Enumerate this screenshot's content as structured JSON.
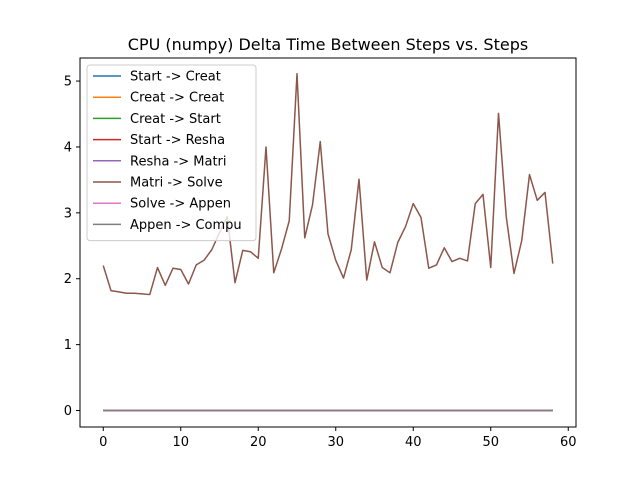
{
  "chart_data": {
    "type": "line",
    "title": "CPU (numpy) Delta Time Between Steps vs. Steps",
    "xlabel": "",
    "ylabel": "",
    "xlim": [
      -3,
      61
    ],
    "ylim": [
      -0.25,
      5.35
    ],
    "xticks": [
      0,
      10,
      20,
      30,
      40,
      50,
      60
    ],
    "yticks": [
      0,
      1,
      2,
      3,
      4,
      5
    ],
    "grid": false,
    "legend_position": "top-left",
    "series": [
      {
        "name": "Start -> Creat",
        "color": "#1f77b4",
        "values": [
          0,
          0,
          0,
          0,
          0,
          0,
          0,
          0,
          0,
          0,
          0,
          0,
          0,
          0,
          0,
          0,
          0,
          0,
          0,
          0,
          0,
          0,
          0,
          0,
          0,
          0,
          0,
          0,
          0,
          0,
          0,
          0,
          0,
          0,
          0,
          0,
          0,
          0,
          0,
          0,
          0,
          0,
          0,
          0,
          0,
          0,
          0,
          0,
          0,
          0,
          0,
          0,
          0,
          0,
          0,
          0,
          0,
          0,
          0
        ]
      },
      {
        "name": "Creat -> Creat",
        "color": "#ff7f0e",
        "values": [
          0,
          0,
          0,
          0,
          0,
          0,
          0,
          0,
          0,
          0,
          0,
          0,
          0,
          0,
          0,
          0,
          0,
          0,
          0,
          0,
          0,
          0,
          0,
          0,
          0,
          0,
          0,
          0,
          0,
          0,
          0,
          0,
          0,
          0,
          0,
          0,
          0,
          0,
          0,
          0,
          0,
          0,
          0,
          0,
          0,
          0,
          0,
          0,
          0,
          0,
          0,
          0,
          0,
          0,
          0,
          0,
          0,
          0,
          0
        ]
      },
      {
        "name": "Creat -> Start",
        "color": "#2ca02c",
        "values": [
          0,
          0,
          0,
          0,
          0,
          0,
          0,
          0,
          0,
          0,
          0,
          0,
          0,
          0,
          0,
          0,
          0,
          0,
          0,
          0,
          0,
          0,
          0,
          0,
          0,
          0,
          0,
          0,
          0,
          0,
          0,
          0,
          0,
          0,
          0,
          0,
          0,
          0,
          0,
          0,
          0,
          0,
          0,
          0,
          0,
          0,
          0,
          0,
          0,
          0,
          0,
          0,
          0,
          0,
          0,
          0,
          0,
          0,
          0
        ]
      },
      {
        "name": "Start -> Resha",
        "color": "#d62728",
        "values": [
          0,
          0,
          0,
          0,
          0,
          0,
          0,
          0,
          0,
          0,
          0,
          0,
          0,
          0,
          0,
          0,
          0,
          0,
          0,
          0,
          0,
          0,
          0,
          0,
          0,
          0,
          0,
          0,
          0,
          0,
          0,
          0,
          0,
          0,
          0,
          0,
          0,
          0,
          0,
          0,
          0,
          0,
          0,
          0,
          0,
          0,
          0,
          0,
          0,
          0,
          0,
          0,
          0,
          0,
          0,
          0,
          0,
          0,
          0
        ]
      },
      {
        "name": "Resha -> Matri",
        "color": "#9467bd",
        "values": [
          0,
          0,
          0,
          0,
          0,
          0,
          0,
          0,
          0,
          0,
          0,
          0,
          0,
          0,
          0,
          0,
          0,
          0,
          0,
          0,
          0,
          0,
          0,
          0,
          0,
          0,
          0,
          0,
          0,
          0,
          0,
          0,
          0,
          0,
          0,
          0,
          0,
          0,
          0,
          0,
          0,
          0,
          0,
          0,
          0,
          0,
          0,
          0,
          0,
          0,
          0,
          0,
          0,
          0,
          0,
          0,
          0,
          0,
          0
        ]
      },
      {
        "name": "Matri -> Solve",
        "color": "#8c564b",
        "values": [
          2.2,
          1.82,
          1.8,
          1.78,
          1.78,
          1.77,
          1.76,
          2.17,
          1.9,
          2.16,
          2.14,
          1.92,
          2.21,
          2.28,
          2.44,
          2.7,
          2.94,
          1.94,
          2.43,
          2.41,
          2.31,
          4.0,
          2.09,
          2.45,
          2.88,
          5.11,
          2.62,
          3.12,
          4.08,
          2.68,
          2.28,
          2.01,
          2.44,
          3.51,
          1.98,
          2.56,
          2.17,
          2.09,
          2.55,
          2.79,
          3.14,
          2.93,
          2.16,
          2.21,
          2.47,
          2.26,
          2.31,
          2.27,
          3.14,
          3.28,
          2.17,
          4.51,
          2.94,
          2.08,
          2.58,
          3.58,
          3.19,
          3.31,
          2.23
        ]
      },
      {
        "name": "Solve -> Appen",
        "color": "#e377c2",
        "values": [
          0,
          0,
          0,
          0,
          0,
          0,
          0,
          0,
          0,
          0,
          0,
          0,
          0,
          0,
          0,
          0,
          0,
          0,
          0,
          0,
          0,
          0,
          0,
          0,
          0,
          0,
          0,
          0,
          0,
          0,
          0,
          0,
          0,
          0,
          0,
          0,
          0,
          0,
          0,
          0,
          0,
          0,
          0,
          0,
          0,
          0,
          0,
          0,
          0,
          0,
          0,
          0,
          0,
          0,
          0,
          0,
          0,
          0,
          0
        ]
      },
      {
        "name": "Appen -> Compu",
        "color": "#7f7f7f",
        "values": [
          0,
          0,
          0,
          0,
          0,
          0,
          0,
          0,
          0,
          0,
          0,
          0,
          0,
          0,
          0,
          0,
          0,
          0,
          0,
          0,
          0,
          0,
          0,
          0,
          0,
          0,
          0,
          0,
          0,
          0,
          0,
          0,
          0,
          0,
          0,
          0,
          0,
          0,
          0,
          0,
          0,
          0,
          0,
          0,
          0,
          0,
          0,
          0,
          0,
          0,
          0,
          0,
          0,
          0,
          0,
          0,
          0,
          0,
          0
        ]
      }
    ]
  }
}
